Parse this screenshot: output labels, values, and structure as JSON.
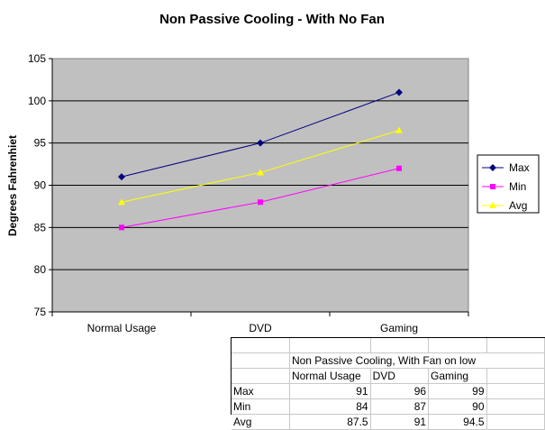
{
  "chart_data": {
    "type": "line",
    "title": "Non Passive Cooling - With No Fan",
    "xlabel": "",
    "ylabel": "Degrees Fahrenhiet",
    "categories": [
      "Normal Usage",
      "DVD",
      "Gaming"
    ],
    "ylim": [
      75,
      105
    ],
    "yticks": [
      75,
      80,
      85,
      90,
      95,
      100,
      105
    ],
    "grid": true,
    "legend_position": "right",
    "plot_background": "#c0c0c0",
    "series": [
      {
        "name": "Max",
        "values": [
          91,
          95,
          101
        ],
        "color": "#000080",
        "marker": "diamond"
      },
      {
        "name": "Min",
        "values": [
          85,
          88,
          92
        ],
        "color": "#ff00ff",
        "marker": "square"
      },
      {
        "name": "Avg",
        "values": [
          88,
          91.5,
          96.5
        ],
        "color": "#ffff00",
        "marker": "triangle"
      }
    ]
  },
  "sheet": {
    "title": "Non Passive Cooling, With Fan on low",
    "columns": [
      "Normal Usage",
      "DVD",
      "Gaming"
    ],
    "rows": [
      {
        "label": "Max",
        "values": [
          "91",
          "96",
          "99"
        ]
      },
      {
        "label": "Min",
        "values": [
          "84",
          "87",
          "90"
        ]
      },
      {
        "label": "Avg",
        "values": [
          "87.5",
          "91",
          "94.5"
        ]
      }
    ]
  }
}
